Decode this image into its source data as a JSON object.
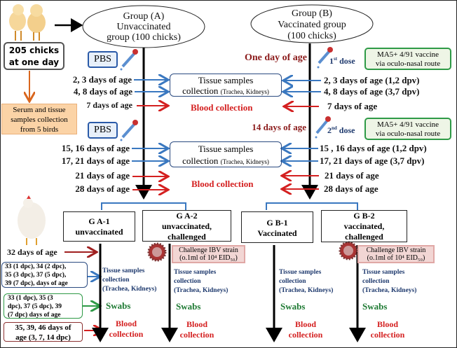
{
  "start": {
    "count_label_1": "205 chicks",
    "count_label_2": "at one day",
    "baseline_1": "Serum and tissue",
    "baseline_2": "samples collection",
    "baseline_3": "from 5 birds"
  },
  "groupA": {
    "line1": "Group (A)",
    "line2": "Unvaccinated",
    "line3": "group (100 chicks)",
    "pbs": "PBS",
    "rows": [
      "2, 3 days of age",
      "4, 8 days of age",
      "7 days of age",
      "15, 16  days of age",
      "17, 21  days of age",
      "21 days of age",
      "28 days of age"
    ]
  },
  "groupB": {
    "line1": "Group (B)",
    "line2": "Vaccinated  group",
    "line3": "(100 chicks)",
    "dose1_day": "One day of age",
    "dose1": "1st dose",
    "dose2_day": "14 days of age",
    "dose2": "2nd dose",
    "vaccine_1": "MA5+ 4/91 vaccine",
    "vaccine_2": "via oculo-nasal route",
    "rows": [
      "2, 3 days of age (1,2 dpv)",
      "4, 8 days of age (3,7  dpv)",
      "7 days of age",
      "15 , 16 days of age (1,2 dpv)",
      "17,  21 days of age (3,7 dpv)",
      "21 days of age",
      "28 days of age"
    ]
  },
  "center": {
    "tissue_1": "Tissue samples",
    "tissue_2": "collection",
    "tissue_organs": "(Trachea,  Kidneys)",
    "blood": "Blood collection"
  },
  "subgroups": [
    {
      "id": "G A-1",
      "desc1": "unvaccinated",
      "desc2": ""
    },
    {
      "id": "G A-2",
      "desc1": "unvaccinated,",
      "desc2": "challenged"
    },
    {
      "id": "G B-1",
      "desc1": "Vaccinated",
      "desc2": ""
    },
    {
      "id": "G B-2",
      "desc1": "vaccinated,",
      "desc2": "challenged"
    }
  ],
  "challenge": {
    "line1": "Challenge  IBV strain",
    "line2": "(o.1ml  of 10⁴ EID₅₀)"
  },
  "phase2": {
    "day32": "32 days of age",
    "tissue_days_1": "33 (1 dpc), 34 (2 dpc),",
    "tissue_days_2": "35 (3 dpc), 37 (5 dpc),",
    "tissue_days_3": "39 (7 dpc), days of age",
    "swab_days_1": "33   (1   dpc),   35   (3",
    "swab_days_2": "dpc), 37 (5 dpc), 39",
    "swab_days_3": "(7 dpc)  days of age",
    "blood_days_1": "35, 39, 46 days of",
    "blood_days_2": "age (3, 7, 14 dpc)",
    "tissue_1": "Tissue samples",
    "tissue_2": "collection",
    "tissue_3": "(Trachea, Kidneys)",
    "swabs": "Swabs",
    "blood_1": "Blood",
    "blood_2": "collection"
  },
  "colors": {
    "blue_arrow": "#3a78c0",
    "red_arrow": "#d42020",
    "orange": "#d9661e",
    "green_border": "#2e9a46",
    "pink_box": "#f2d6d4"
  }
}
